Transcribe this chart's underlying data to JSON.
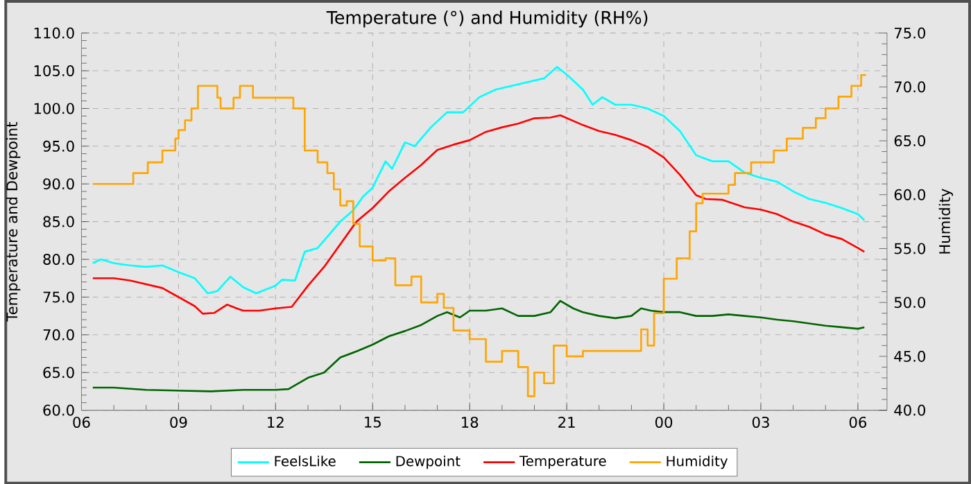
{
  "chart_data": {
    "type": "line",
    "title": "Temperature (°) and Humidity (RH%)",
    "ylabel": "Temperature and Dewpoint",
    "y2label": "Humidity",
    "xlim": [
      6,
      30.9
    ],
    "xticks": [
      {
        "value": 6,
        "label": "06"
      },
      {
        "value": 9,
        "label": "09"
      },
      {
        "value": 12,
        "label": "12"
      },
      {
        "value": 15,
        "label": "15"
      },
      {
        "value": 18,
        "label": "18"
      },
      {
        "value": 21,
        "label": "21"
      },
      {
        "value": 24,
        "label": "00"
      },
      {
        "value": 27,
        "label": "03"
      },
      {
        "value": 30,
        "label": "06"
      }
    ],
    "ylim": [
      60,
      110
    ],
    "yticks": [
      {
        "value": 60,
        "label": "60.0"
      },
      {
        "value": 65,
        "label": "65.0"
      },
      {
        "value": 70,
        "label": "70.0"
      },
      {
        "value": 75,
        "label": "75.0"
      },
      {
        "value": 80,
        "label": "80.0"
      },
      {
        "value": 85,
        "label": "85.0"
      },
      {
        "value": 90,
        "label": "90.0"
      },
      {
        "value": 95,
        "label": "95.0"
      },
      {
        "value": 100,
        "label": "100.0"
      },
      {
        "value": 105,
        "label": "105.0"
      },
      {
        "value": 110,
        "label": "110.0"
      }
    ],
    "y2lim": [
      40,
      75
    ],
    "y2ticks": [
      {
        "value": 40,
        "label": "40.0"
      },
      {
        "value": 45,
        "label": "45.0"
      },
      {
        "value": 50,
        "label": "50.0"
      },
      {
        "value": 55,
        "label": "55.0"
      },
      {
        "value": 60,
        "label": "60.0"
      },
      {
        "value": 65,
        "label": "65.0"
      },
      {
        "value": 70,
        "label": "70.0"
      },
      {
        "value": 75,
        "label": "75.0"
      }
    ],
    "grid": true,
    "legend": "bottom",
    "line_style": "solid",
    "series": [
      {
        "name": "FeelsLike",
        "color": "#00ffff",
        "x": [
          6.35,
          6.6,
          7,
          7.5,
          8,
          8.5,
          9,
          9.5,
          9.9,
          10.2,
          10.6,
          11,
          11.4,
          12,
          12.2,
          12.6,
          12.9,
          13.3,
          13.6,
          14,
          14.4,
          14.7,
          15,
          15.4,
          15.6,
          16,
          16.3,
          16.8,
          17.3,
          17.8,
          18.3,
          18.8,
          19.3,
          19.8,
          20.3,
          20.7,
          21,
          21.5,
          21.8,
          22.1,
          22.5,
          23,
          23.5,
          24,
          24.5,
          25,
          25.5,
          26,
          26.5,
          27,
          27.5,
          28,
          28.5,
          29,
          29.5,
          30,
          30.2
        ],
        "values": [
          79.5,
          80.0,
          79.5,
          79.2,
          79.0,
          79.2,
          78.3,
          77.5,
          75.5,
          75.8,
          77.7,
          76.3,
          75.5,
          76.5,
          77.3,
          77.2,
          81.0,
          81.5,
          83.0,
          85.0,
          86.5,
          88.3,
          89.5,
          93.0,
          92.0,
          95.5,
          95.0,
          97.5,
          99.5,
          99.5,
          101.5,
          102.5,
          103.0,
          103.5,
          104.0,
          105.5,
          104.5,
          102.5,
          100.5,
          101.5,
          100.5,
          100.5,
          100.0,
          99.0,
          97.0,
          93.8,
          93.0,
          93.0,
          91.5,
          90.8,
          90.3,
          89.0,
          88.0,
          87.5,
          86.8,
          86.0,
          85.2
        ]
      },
      {
        "name": "Dewpoint",
        "color": "#006400",
        "x": [
          6.35,
          7,
          8,
          9,
          10,
          11,
          12,
          12.4,
          13,
          13.5,
          14,
          14.5,
          15,
          15.5,
          16,
          16.5,
          17,
          17.3,
          17.7,
          18,
          18.5,
          19,
          19.5,
          20,
          20.5,
          20.8,
          21.2,
          21.5,
          22,
          22.5,
          23,
          23.3,
          23.6,
          24,
          24.5,
          25,
          25.5,
          26,
          26.5,
          27,
          27.5,
          28,
          28.5,
          29,
          29.5,
          30,
          30.2
        ],
        "values": [
          63.0,
          63.0,
          62.7,
          62.6,
          62.5,
          62.7,
          62.7,
          62.8,
          64.3,
          65.0,
          67.0,
          67.8,
          68.7,
          69.8,
          70.5,
          71.3,
          72.5,
          73.0,
          72.3,
          73.2,
          73.2,
          73.5,
          72.5,
          72.5,
          73.0,
          74.5,
          73.5,
          73.0,
          72.5,
          72.2,
          72.5,
          73.5,
          73.2,
          73.0,
          73.0,
          72.5,
          72.5,
          72.7,
          72.5,
          72.3,
          72.0,
          71.8,
          71.5,
          71.2,
          71.0,
          70.8,
          71.0
        ]
      },
      {
        "name": "Temperature",
        "color": "#ff0000",
        "x": [
          6.35,
          7,
          7.5,
          8,
          8.5,
          9,
          9.5,
          9.75,
          10.1,
          10.5,
          10.8,
          11,
          11.5,
          12,
          12.5,
          13,
          13.5,
          14,
          14.5,
          15,
          15.5,
          16,
          16.5,
          17,
          17.5,
          18,
          18.5,
          19,
          19.5,
          20,
          20.5,
          20.8,
          21.5,
          22,
          22.5,
          23,
          23.5,
          24,
          24.5,
          25,
          25.3,
          25.8,
          26.5,
          27,
          27.5,
          28,
          28.5,
          29,
          29.5,
          30,
          30.2
        ],
        "values": [
          77.5,
          77.5,
          77.2,
          76.7,
          76.2,
          75.0,
          73.8,
          72.8,
          72.9,
          74.0,
          73.5,
          73.2,
          73.2,
          73.5,
          73.7,
          76.5,
          79.0,
          82.0,
          85.0,
          86.8,
          89.0,
          90.8,
          92.5,
          94.5,
          95.2,
          95.8,
          96.9,
          97.5,
          98.0,
          98.7,
          98.8,
          99.1,
          97.8,
          97.0,
          96.5,
          95.8,
          94.9,
          93.5,
          91.2,
          88.5,
          88.0,
          87.9,
          86.9,
          86.6,
          86.0,
          85.0,
          84.3,
          83.3,
          82.7,
          81.5,
          81.0
        ]
      },
      {
        "name": "Humidity",
        "color": "#ffa500",
        "type": "step",
        "axis": "y2",
        "x": [
          6.35,
          7.6,
          8.05,
          8.5,
          8.9,
          9.0,
          9.2,
          9.4,
          9.6,
          10.2,
          10.3,
          10.7,
          10.9,
          11.3,
          12.55,
          12.9,
          13.3,
          13.6,
          13.8,
          14.0,
          14.2,
          14.4,
          14.6,
          15.0,
          15.4,
          15.7,
          16.2,
          16.5,
          17.0,
          17.2,
          17.5,
          18.0,
          18.5,
          19.0,
          19.5,
          19.8,
          20.0,
          20.3,
          20.6,
          21.0,
          21.5,
          22.0,
          23.0,
          23.3,
          23.5,
          23.7,
          24.0,
          24.4,
          24.8,
          25.0,
          25.2,
          26.0,
          26.2,
          26.7,
          27.4,
          27.8,
          28.3,
          28.7,
          29.0,
          29.4,
          29.8,
          30.1,
          30.25
        ],
        "values": [
          61.0,
          62.0,
          63.0,
          64.1,
          65.2,
          66.0,
          66.9,
          68.0,
          70.1,
          69.0,
          68.0,
          69.0,
          70.1,
          69.0,
          68.0,
          64.1,
          63.0,
          62.0,
          60.5,
          59.0,
          59.4,
          57.3,
          55.2,
          53.9,
          54.1,
          51.6,
          52.4,
          50.0,
          50.8,
          49.5,
          47.4,
          46.6,
          44.5,
          45.5,
          44.0,
          41.3,
          43.5,
          42.5,
          46.0,
          45.0,
          45.5,
          45.5,
          45.5,
          47.5,
          46.0,
          49.0,
          52.2,
          54.1,
          56.6,
          59.2,
          60.1,
          60.9,
          62.0,
          63.0,
          64.1,
          65.2,
          66.2,
          67.1,
          68.0,
          69.1,
          70.1,
          71.1,
          71.1
        ]
      }
    ]
  }
}
